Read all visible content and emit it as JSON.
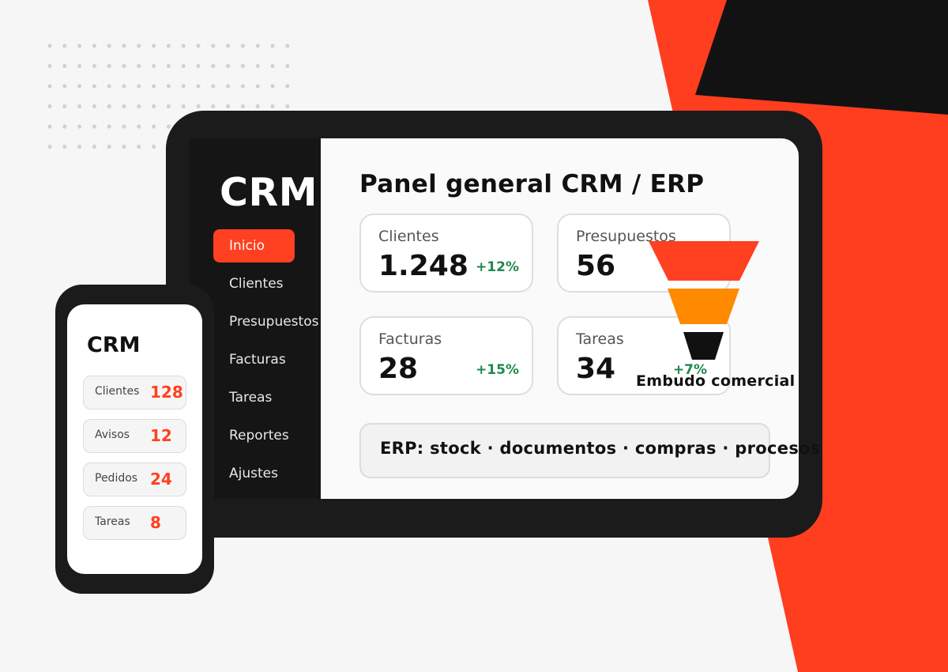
{
  "colors": {
    "accent": "#ff4021",
    "dark": "#1b1b1b",
    "background": "#f6f6f6",
    "positive": "#1e8a4c",
    "funnel": [
      "#ff4021",
      "#ff8a00",
      "#111111"
    ]
  },
  "tablet": {
    "sidebar": {
      "brand": "CRM",
      "items": [
        {
          "label": "Inicio",
          "active": true
        },
        {
          "label": "Clientes"
        },
        {
          "label": "Presupuestos"
        },
        {
          "label": "Facturas"
        },
        {
          "label": "Tareas"
        },
        {
          "label": "Reportes"
        },
        {
          "label": "Ajustes"
        }
      ]
    },
    "title": "Panel general CRM / ERP",
    "cards": [
      {
        "label": "Clientes",
        "value": "1.248",
        "delta": "+12%"
      },
      {
        "label": "Presupuestos",
        "value": "56",
        "delta": ""
      },
      {
        "label": "Facturas",
        "value": "28",
        "delta": "+15%"
      },
      {
        "label": "Tareas",
        "value": "34",
        "delta": "+7%"
      }
    ],
    "erp_banner": "ERP: stock · documentos · compras · procesos"
  },
  "funnel": {
    "label": "Embudo comercial"
  },
  "phone": {
    "title": "CRM",
    "items": [
      {
        "label": "Clientes",
        "value": "128"
      },
      {
        "label": "Avisos",
        "value": "12"
      },
      {
        "label": "Pedidos",
        "value": "24"
      },
      {
        "label": "Tareas",
        "value": "8"
      }
    ]
  }
}
